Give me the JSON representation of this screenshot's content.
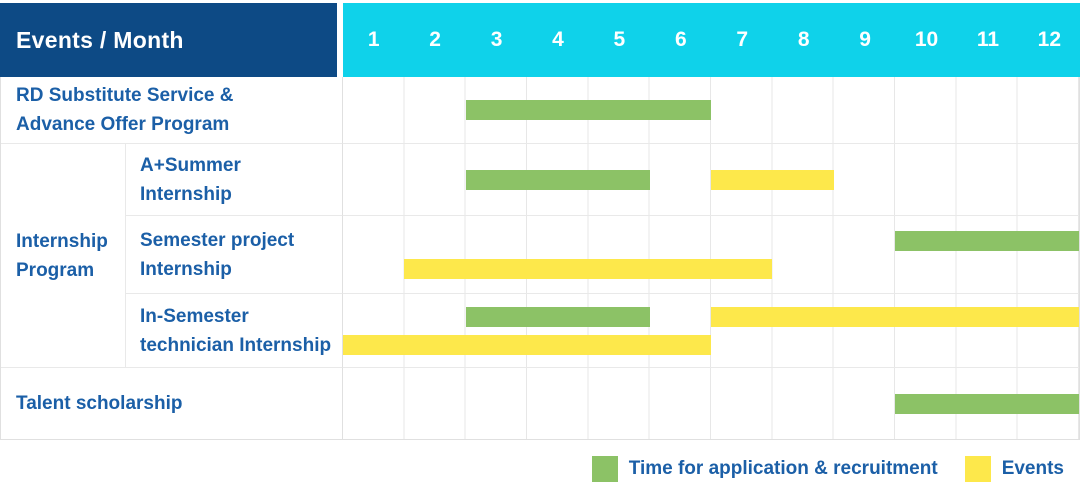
{
  "colors": {
    "navy": "#0d4a85",
    "cyan": "#0fd2ea",
    "green": "#8cc266",
    "yellow": "#fde84b",
    "label_blue": "#1b5fa7",
    "grid": "#e7e7e7"
  },
  "header": {
    "title": "Events / Month",
    "months": [
      "1",
      "2",
      "3",
      "4",
      "5",
      "6",
      "7",
      "8",
      "9",
      "10",
      "11",
      "12"
    ]
  },
  "group_label": {
    "line1": "Internship",
    "line2": "Program"
  },
  "rows": [
    {
      "id": "rd-substitute",
      "label_lines": [
        "RD Substitute Service &",
        "Advance Offer Program"
      ],
      "lines": [
        [
          {
            "color": "green",
            "start": 3,
            "end": 7
          }
        ]
      ]
    },
    {
      "id": "a-plus-summer",
      "group": "Internship Program",
      "label_lines": [
        "A+Summer",
        "Internship"
      ],
      "lines": [
        [
          {
            "color": "green",
            "start": 3,
            "end": 6
          },
          {
            "color": "yellow",
            "start": 7,
            "end": 9
          }
        ]
      ]
    },
    {
      "id": "semester-project",
      "group": "Internship Program",
      "label_lines": [
        "Semester project",
        "Internship"
      ],
      "lines": [
        [
          {
            "color": "green",
            "start": 10,
            "end": 13
          }
        ],
        [
          {
            "color": "yellow",
            "start": 2,
            "end": 8
          }
        ]
      ]
    },
    {
      "id": "in-semester-technician",
      "group": "Internship Program",
      "label_lines": [
        "In-Semester",
        "technician Internship"
      ],
      "lines": [
        [
          {
            "color": "green",
            "start": 3,
            "end": 6
          },
          {
            "color": "yellow",
            "start": 7,
            "end": 13
          }
        ],
        [
          {
            "color": "yellow",
            "start": 1,
            "end": 7
          }
        ]
      ]
    },
    {
      "id": "talent-scholarship",
      "label_lines": [
        "Talent scholarship"
      ],
      "lines": [
        [
          {
            "color": "green",
            "start": 10,
            "end": 13
          }
        ]
      ]
    }
  ],
  "legend": {
    "items": [
      {
        "label": "Time for application & recruitment",
        "color": "green"
      },
      {
        "label": "Events",
        "color": "yellow"
      }
    ]
  },
  "chart_data": {
    "type": "bar",
    "subtype": "gantt",
    "title": "Events / Month",
    "xlabel": "Month",
    "x_ticks": [
      1,
      2,
      3,
      4,
      5,
      6,
      7,
      8,
      9,
      10,
      11,
      12
    ],
    "x_range": [
      1,
      12
    ],
    "legend_position": "bottom-right",
    "grid": true,
    "series_legend": [
      {
        "name": "Time for application & recruitment",
        "color": "#8cc266"
      },
      {
        "name": "Events",
        "color": "#fde84b"
      }
    ],
    "rows": [
      {
        "event": "RD Substitute Service & Advance Offer Program",
        "group": null,
        "bars": [
          {
            "series": "Time for application & recruitment",
            "months": [
              3,
              6
            ]
          }
        ]
      },
      {
        "event": "A+Summer Internship",
        "group": "Internship Program",
        "bars": [
          {
            "series": "Time for application & recruitment",
            "months": [
              3,
              5
            ]
          },
          {
            "series": "Events",
            "months": [
              7,
              8
            ]
          }
        ]
      },
      {
        "event": "Semester project Internship",
        "group": "Internship Program",
        "bars": [
          {
            "series": "Time for application & recruitment",
            "months": [
              10,
              12
            ]
          },
          {
            "series": "Events",
            "months": [
              2,
              7
            ]
          }
        ]
      },
      {
        "event": "In-Semester technician Internship",
        "group": "Internship Program",
        "bars": [
          {
            "series": "Time for application & recruitment",
            "months": [
              3,
              5
            ]
          },
          {
            "series": "Events",
            "months": [
              7,
              12
            ]
          },
          {
            "series": "Events",
            "months": [
              1,
              6
            ]
          }
        ]
      },
      {
        "event": "Talent scholarship",
        "group": null,
        "bars": [
          {
            "series": "Time for application & recruitment",
            "months": [
              10,
              12
            ]
          }
        ]
      }
    ]
  }
}
